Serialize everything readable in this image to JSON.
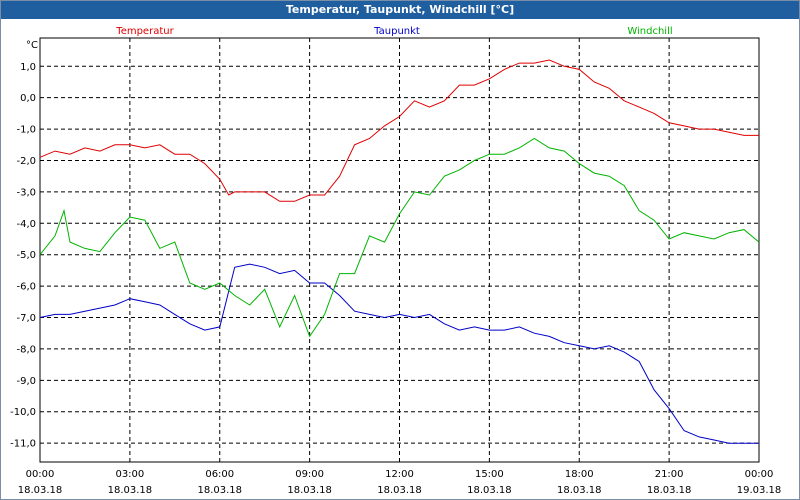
{
  "window": {
    "title": "Temperatur, Taupunkt, Windchill [°C]"
  },
  "chart_data": {
    "type": "line",
    "title": "Temperatur, Taupunkt, Windchill [°C]",
    "ylabel": "°C",
    "xlabel": "",
    "ylim": [
      -11.6,
      1.9
    ],
    "xlim": [
      0,
      24
    ],
    "grid": true,
    "y_ticks": [
      {
        "value": 1.0,
        "label": "1,0"
      },
      {
        "value": 0.0,
        "label": "0,0"
      },
      {
        "value": -1.0,
        "label": "-1,0"
      },
      {
        "value": -2.0,
        "label": "-2,0"
      },
      {
        "value": -3.0,
        "label": "-3,0"
      },
      {
        "value": -4.0,
        "label": "-4,0"
      },
      {
        "value": -5.0,
        "label": "-5,0"
      },
      {
        "value": -6.0,
        "label": "-6,0"
      },
      {
        "value": -7.0,
        "label": "-7,0"
      },
      {
        "value": -8.0,
        "label": "-8,0"
      },
      {
        "value": -9.0,
        "label": "-9,0"
      },
      {
        "value": -10.0,
        "label": "-10,0"
      },
      {
        "value": -11.0,
        "label": "-11,0"
      }
    ],
    "x_ticks": [
      {
        "value": 0,
        "time": "00:00",
        "date": "18.03.18"
      },
      {
        "value": 3,
        "time": "03:00",
        "date": "18.03.18"
      },
      {
        "value": 6,
        "time": "06:00",
        "date": "18.03.18"
      },
      {
        "value": 9,
        "time": "09:00",
        "date": "18.03.18"
      },
      {
        "value": 12,
        "time": "12:00",
        "date": "18.03.18"
      },
      {
        "value": 15,
        "time": "15:00",
        "date": "18.03.18"
      },
      {
        "value": 18,
        "time": "18:00",
        "date": "18.03.18"
      },
      {
        "value": 21,
        "time": "21:00",
        "date": "18.03.18"
      },
      {
        "value": 24,
        "time": "00:00",
        "date": "19.03.18"
      }
    ],
    "series": [
      {
        "name": "Temperatur",
        "color": "#e00000",
        "x": [
          0,
          0.5,
          1,
          1.5,
          2,
          2.5,
          3,
          3.5,
          4,
          4.5,
          5,
          5.5,
          6,
          6.3,
          6.5,
          7,
          7.5,
          8,
          8.5,
          9,
          9.5,
          10,
          10.5,
          11,
          11.5,
          12,
          12.5,
          13,
          13.5,
          14,
          14.5,
          15,
          15.5,
          16,
          16.5,
          17,
          17.5,
          18,
          18.5,
          19,
          19.5,
          20,
          20.5,
          21,
          21.5,
          22,
          22.5,
          23,
          23.5,
          24
        ],
        "values": [
          -1.9,
          -1.7,
          -1.8,
          -1.6,
          -1.7,
          -1.5,
          -1.5,
          -1.6,
          -1.5,
          -1.8,
          -1.8,
          -2.1,
          -2.6,
          -3.1,
          -3.0,
          -3.0,
          -3.0,
          -3.3,
          -3.3,
          -3.1,
          -3.1,
          -2.5,
          -1.5,
          -1.3,
          -0.9,
          -0.6,
          -0.1,
          -0.3,
          -0.1,
          0.4,
          0.4,
          0.6,
          0.9,
          1.1,
          1.1,
          1.2,
          1.0,
          0.9,
          0.5,
          0.3,
          -0.1,
          -0.3,
          -0.5,
          -0.8,
          -0.9,
          -1.0,
          -1.0,
          -1.1,
          -1.2,
          -1.2
        ]
      },
      {
        "name": "Taupunkt",
        "color": "#0000c8",
        "x": [
          0,
          0.5,
          1,
          1.5,
          2,
          2.5,
          3,
          3.5,
          4,
          4.5,
          5,
          5.5,
          6,
          6.5,
          7,
          7.5,
          8,
          8.5,
          9,
          9.5,
          10,
          10.5,
          11,
          11.5,
          12,
          12.5,
          13,
          13.5,
          14,
          14.5,
          15,
          15.5,
          16,
          16.5,
          17,
          17.5,
          18,
          18.5,
          19,
          19.5,
          20,
          20.5,
          21,
          21.5,
          22,
          22.5,
          23,
          23.5,
          24
        ],
        "values": [
          -7.0,
          -6.9,
          -6.9,
          -6.8,
          -6.7,
          -6.6,
          -6.4,
          -6.5,
          -6.6,
          -6.9,
          -7.2,
          -7.4,
          -7.3,
          -5.4,
          -5.3,
          -5.4,
          -5.6,
          -5.5,
          -5.9,
          -5.9,
          -6.3,
          -6.8,
          -6.9,
          -7.0,
          -6.9,
          -7.0,
          -6.9,
          -7.2,
          -7.4,
          -7.3,
          -7.4,
          -7.4,
          -7.3,
          -7.5,
          -7.6,
          -7.8,
          -7.9,
          -8.0,
          -7.9,
          -8.1,
          -8.4,
          -9.3,
          -9.9,
          -10.6,
          -10.8,
          -10.9,
          -11.0,
          -11.0,
          -11.0
        ]
      },
      {
        "name": "Windchill",
        "color": "#00b400",
        "x": [
          0,
          0.5,
          0.8,
          1,
          1.5,
          2,
          2.5,
          3,
          3.5,
          4,
          4.5,
          5,
          5.5,
          6,
          6.5,
          7,
          7.5,
          8,
          8.5,
          9,
          9.5,
          10,
          10.5,
          11,
          11.5,
          12,
          12.5,
          13,
          13.5,
          14,
          14.5,
          15,
          15.5,
          16,
          16.5,
          17,
          17.5,
          18,
          18.5,
          19,
          19.5,
          20,
          20.5,
          21,
          21.5,
          22,
          22.5,
          23,
          23.5,
          24
        ],
        "values": [
          -5.0,
          -4.4,
          -3.6,
          -4.6,
          -4.8,
          -4.9,
          -4.3,
          -3.8,
          -3.9,
          -4.8,
          -4.6,
          -5.9,
          -6.1,
          -5.9,
          -6.3,
          -6.6,
          -6.1,
          -7.3,
          -6.3,
          -7.6,
          -6.9,
          -5.6,
          -5.6,
          -4.4,
          -4.6,
          -3.7,
          -3.0,
          -3.1,
          -2.5,
          -2.3,
          -2.0,
          -1.8,
          -1.8,
          -1.6,
          -1.3,
          -1.6,
          -1.7,
          -2.1,
          -2.4,
          -2.5,
          -2.8,
          -3.6,
          -3.9,
          -4.5,
          -4.3,
          -4.4,
          -4.5,
          -4.3,
          -4.2,
          -4.6
        ]
      }
    ]
  }
}
